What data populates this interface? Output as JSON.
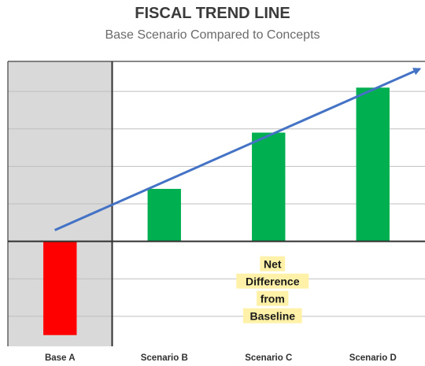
{
  "title": "FISCAL TREND LINE",
  "subtitle": "Base Scenario Compared to Concepts",
  "annotation": [
    "Net",
    "Difference",
    "from",
    "Baseline"
  ],
  "colors": {
    "positive": "#00b050",
    "negative": "#ff0000",
    "trend": "#4472c4",
    "baseline_shade": "#d9d9d9",
    "grid": "#bfbfbf",
    "annotation_highlight": "#fff2a8"
  },
  "chart_data": {
    "type": "bar",
    "categories": [
      "Base A",
      "Scenario B",
      "Scenario C",
      "Scenario D"
    ],
    "values": [
      -2.5,
      1.4,
      2.9,
      4.1
    ],
    "ylim": [
      -2.8,
      4.8
    ],
    "grid": true,
    "trend_arrow": {
      "from": [
        -0.05,
        0.3
      ],
      "to": [
        3.45,
        4.6
      ]
    },
    "baseline_region": "Base A",
    "xlabel": "",
    "ylabel": ""
  }
}
